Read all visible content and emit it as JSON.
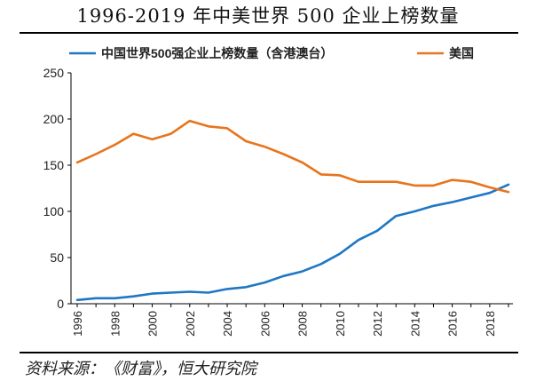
{
  "header": {
    "title": "1996-2019 年中美世界 500 企业上榜数量"
  },
  "footer": {
    "source": "资料来源：《财富》，恒大研究院"
  },
  "colors": {
    "series1": "#1f77c4",
    "series2": "#e8741c",
    "axis": "#000000",
    "text": "#222222"
  },
  "chart_data": {
    "type": "line",
    "title": "1996-2019 年中美世界 500 企业上榜数量",
    "xlabel": "",
    "ylabel": "",
    "ylim": [
      0,
      250
    ],
    "yticks": [
      0,
      50,
      100,
      150,
      200,
      250
    ],
    "xticks": [
      1996,
      1998,
      2000,
      2002,
      2004,
      2006,
      2008,
      2010,
      2012,
      2014,
      2016,
      2018
    ],
    "xrange": [
      1996,
      2019
    ],
    "grid": false,
    "legend_position": "top",
    "x": [
      1996,
      1997,
      1998,
      1999,
      2000,
      2001,
      2002,
      2003,
      2004,
      2005,
      2006,
      2007,
      2008,
      2009,
      2010,
      2011,
      2012,
      2013,
      2014,
      2015,
      2016,
      2017,
      2018,
      2019
    ],
    "series": [
      {
        "name": "中国世界500强企业上榜数量（含港澳台）",
        "values": [
          4,
          6,
          6,
          8,
          11,
          12,
          13,
          12,
          16,
          18,
          23,
          30,
          35,
          43,
          54,
          69,
          79,
          95,
          100,
          106,
          110,
          115,
          120,
          129
        ]
      },
      {
        "name": "美国",
        "values": [
          153,
          162,
          172,
          184,
          178,
          184,
          198,
          192,
          190,
          176,
          170,
          162,
          153,
          140,
          139,
          132,
          132,
          132,
          128,
          128,
          134,
          132,
          126,
          121
        ]
      }
    ]
  }
}
